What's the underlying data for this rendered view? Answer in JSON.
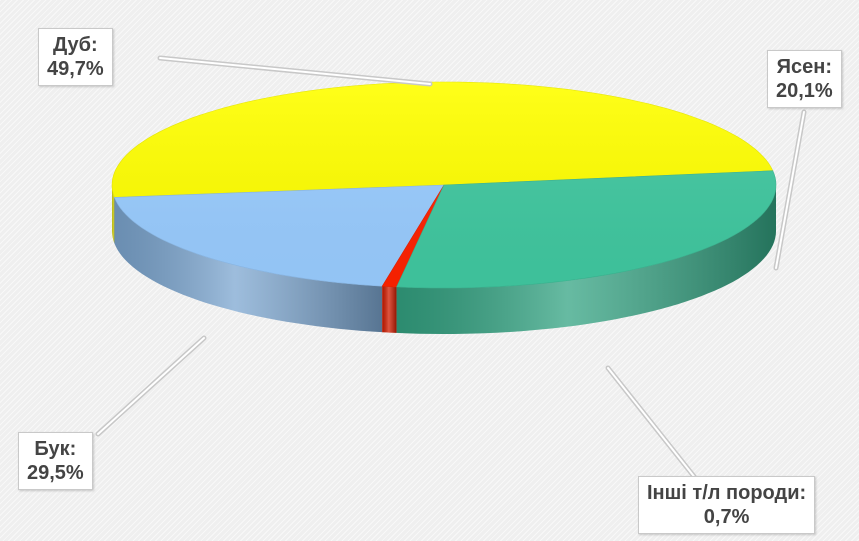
{
  "chart_data": {
    "type": "pie",
    "style": "3d",
    "slices": [
      {
        "label": "Дуб:",
        "value": 49.7,
        "value_label": "49,7%",
        "color": "#ffff00"
      },
      {
        "label": "Ясен:",
        "value": 20.1,
        "value_label": "20,1%",
        "color": "#99ccff"
      },
      {
        "label": "Інші т/л породи:",
        "value": 0.7,
        "value_label": "0,7%",
        "color": "#ff2200"
      },
      {
        "label": "Бук:",
        "value": 29.5,
        "value_label": "29,5%",
        "color": "#40c8a0"
      }
    ]
  }
}
